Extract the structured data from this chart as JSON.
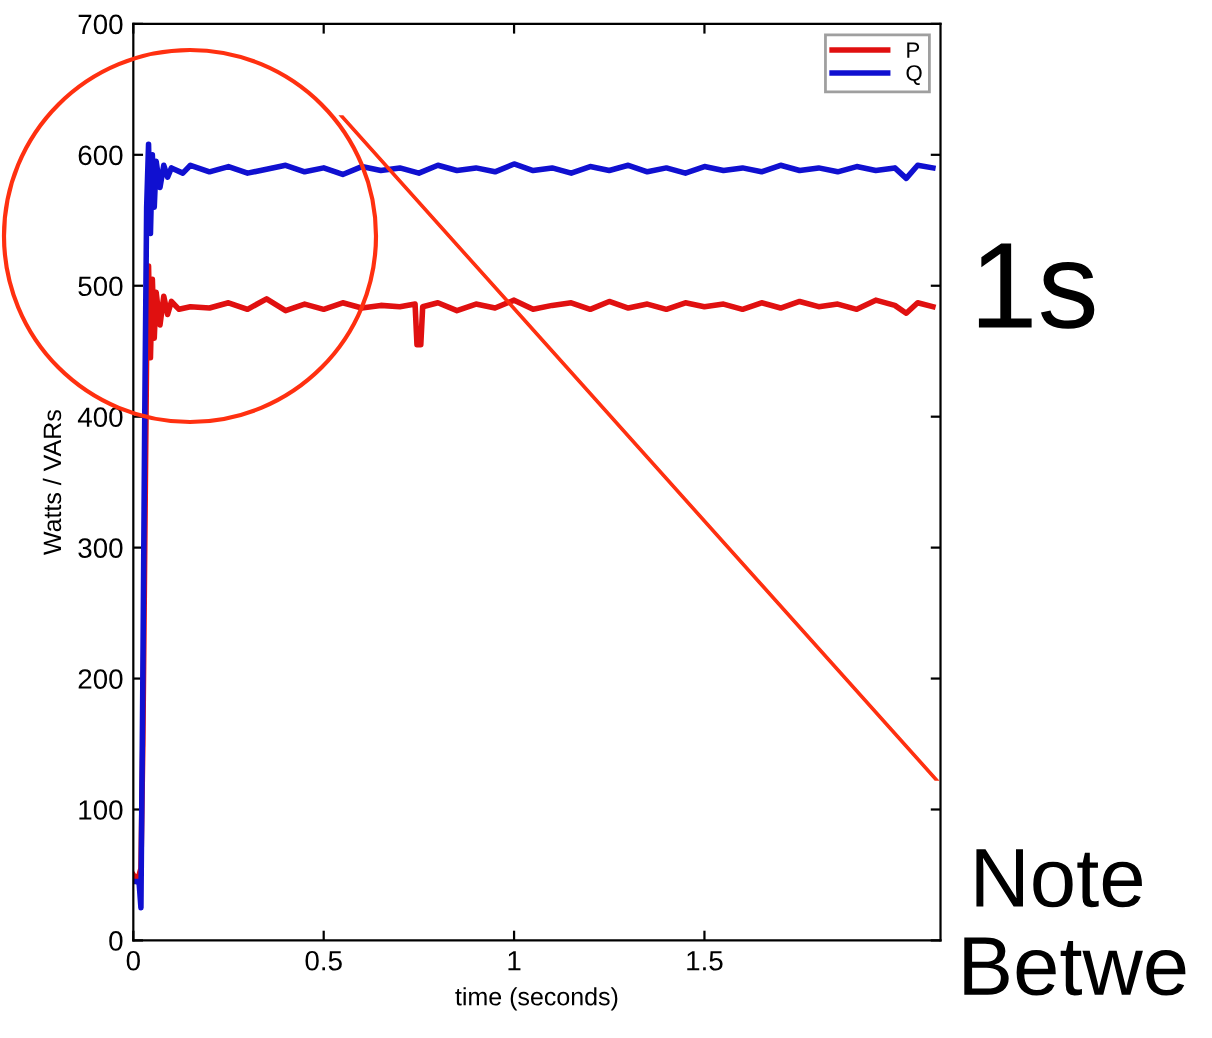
{
  "chart_data": {
    "type": "line",
    "xlabel": "time (seconds)",
    "ylabel": "Watts / VARs",
    "xlim": [
      0,
      2.12
    ],
    "xticks": [
      0,
      0.5,
      1,
      1.5
    ],
    "ylim": [
      0,
      700
    ],
    "yticks": [
      0,
      100,
      200,
      300,
      400,
      500,
      600,
      700
    ],
    "grid": false,
    "legend": "top right",
    "marker": "none",
    "line_style": "solid",
    "annotations": [
      "1s",
      "Note",
      "Betwe"
    ],
    "series": [
      {
        "name": "P",
        "color": "#e01010",
        "x": [
          0,
          0.01,
          0.02,
          0.025,
          0.03,
          0.035,
          0.04,
          0.045,
          0.05,
          0.055,
          0.06,
          0.07,
          0.08,
          0.09,
          0.1,
          0.12,
          0.15,
          0.2,
          0.25,
          0.3,
          0.35,
          0.4,
          0.45,
          0.5,
          0.55,
          0.6,
          0.65,
          0.7,
          0.74,
          0.745,
          0.755,
          0.76,
          0.8,
          0.85,
          0.9,
          0.95,
          1.0,
          1.05,
          1.1,
          1.15,
          1.2,
          1.25,
          1.3,
          1.35,
          1.4,
          1.45,
          1.5,
          1.55,
          1.6,
          1.65,
          1.7,
          1.75,
          1.8,
          1.85,
          1.9,
          1.95,
          2.0,
          2.03,
          2.06,
          2.1
        ],
        "values": [
          50,
          45,
          55,
          150,
          300,
          450,
          515,
          445,
          505,
          460,
          495,
          470,
          492,
          478,
          488,
          482,
          484,
          483,
          487,
          482,
          490,
          481,
          486,
          482,
          487,
          483,
          485,
          484,
          486,
          455,
          455,
          484,
          487,
          481,
          486,
          483,
          489,
          482,
          485,
          487,
          482,
          488,
          483,
          486,
          482,
          487,
          484,
          486,
          482,
          487,
          483,
          488,
          484,
          486,
          482,
          489,
          485,
          479,
          487,
          484
        ]
      },
      {
        "name": "Q",
        "color": "#1010d0",
        "x": [
          0,
          0.015,
          0.02,
          0.025,
          0.03,
          0.035,
          0.04,
          0.045,
          0.05,
          0.055,
          0.06,
          0.07,
          0.08,
          0.09,
          0.1,
          0.13,
          0.15,
          0.2,
          0.25,
          0.3,
          0.35,
          0.4,
          0.45,
          0.5,
          0.55,
          0.6,
          0.65,
          0.7,
          0.75,
          0.8,
          0.85,
          0.9,
          0.95,
          1.0,
          1.05,
          1.1,
          1.15,
          1.2,
          1.25,
          1.3,
          1.35,
          1.4,
          1.45,
          1.5,
          1.55,
          1.6,
          1.65,
          1.7,
          1.75,
          1.8,
          1.85,
          1.9,
          1.95,
          2.0,
          2.03,
          2.06,
          2.1
        ],
        "values": [
          45,
          45,
          25,
          200,
          400,
          560,
          608,
          540,
          600,
          560,
          595,
          575,
          592,
          583,
          590,
          586,
          592,
          587,
          591,
          586,
          589,
          592,
          587,
          590,
          585,
          591,
          588,
          590,
          586,
          592,
          588,
          590,
          587,
          593,
          588,
          590,
          586,
          591,
          588,
          592,
          587,
          590,
          586,
          591,
          588,
          590,
          587,
          592,
          588,
          590,
          587,
          591,
          588,
          590,
          582,
          592,
          590
        ]
      }
    ]
  }
}
